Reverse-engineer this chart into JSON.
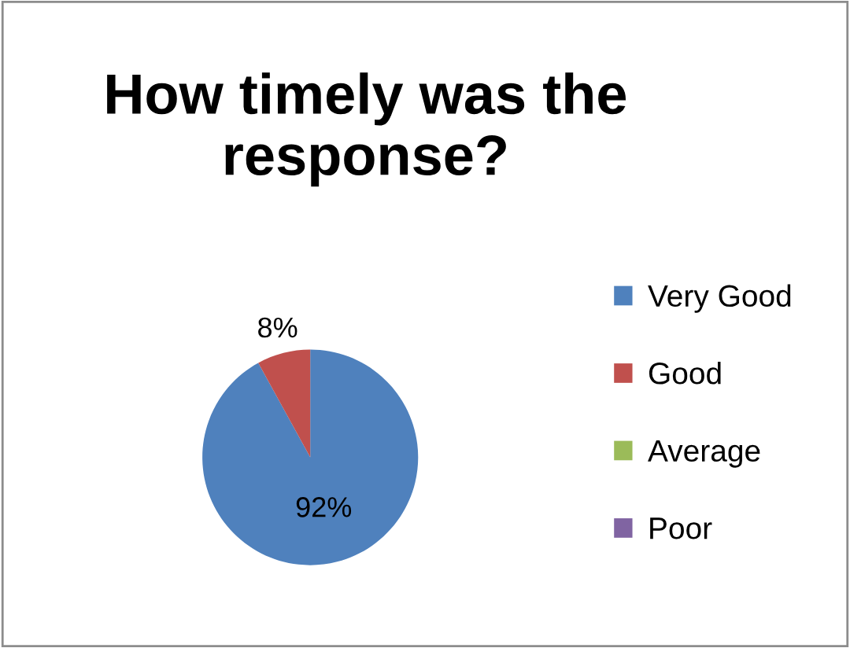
{
  "chart_data": {
    "type": "pie",
    "title": "How timely was the response?",
    "categories": [
      "Very Good",
      "Good",
      "Average",
      "Poor"
    ],
    "values": [
      92,
      8,
      0,
      0
    ],
    "colors": [
      "#4f81bd",
      "#c0504d",
      "#9bbb59",
      "#8064a2"
    ],
    "value_labels": [
      "92%",
      "8%",
      null,
      null
    ],
    "legend": "right"
  }
}
